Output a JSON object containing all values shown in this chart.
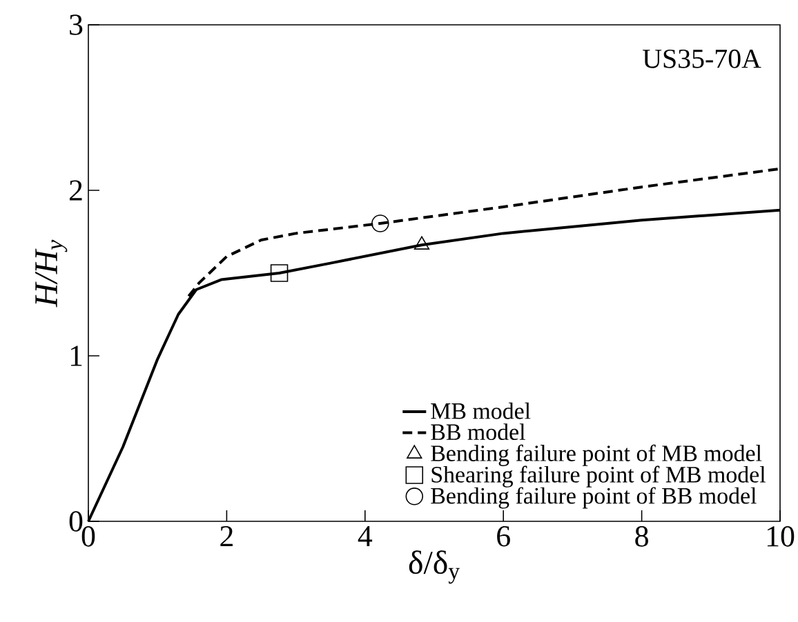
{
  "chart_data": {
    "type": "line",
    "xlabel": "δ/δ$_{y}$",
    "ylabel": "H/H$_{y}$",
    "annotations": [
      "US35-70A"
    ],
    "xlim": [
      0,
      10
    ],
    "ylim": [
      0,
      3
    ],
    "xticks": [
      0,
      2,
      4,
      6,
      8,
      10
    ],
    "yticks": [
      0,
      1,
      2,
      3
    ],
    "grid": false,
    "legend": "bottom right",
    "series": [
      {
        "name": "MB model",
        "type": "line",
        "color": "#000000",
        "line_style": "solid",
        "marker": "none",
        "x": [
          0,
          0.5,
          1.0,
          1.3,
          1.56,
          1.92,
          2.76,
          3.5,
          4.82,
          6,
          8,
          10
        ],
        "values": [
          0,
          0.45,
          0.98,
          1.25,
          1.4,
          1.46,
          1.5,
          1.56,
          1.67,
          1.74,
          1.82,
          1.88
        ]
      },
      {
        "name": "BB model",
        "type": "line",
        "color": "#000000",
        "line_style": "dashed",
        "marker": "none",
        "x": [
          1.45,
          1.6,
          2.0,
          2.5,
          3.0,
          4.22,
          6,
          8,
          10
        ],
        "values": [
          1.36,
          1.44,
          1.6,
          1.7,
          1.74,
          1.8,
          1.9,
          2.02,
          2.13
        ]
      },
      {
        "name": "Bending failure point of MB model",
        "type": "scatter",
        "color": "#000000",
        "marker": "triangle",
        "x": [
          4.82
        ],
        "values": [
          1.67
        ]
      },
      {
        "name": "Shearing failure point of MB model",
        "type": "scatter",
        "color": "#000000",
        "marker": "square",
        "x": [
          2.76
        ],
        "values": [
          1.5
        ]
      },
      {
        "name": "Bending failure point of BB model",
        "type": "scatter",
        "color": "#000000",
        "marker": "circle",
        "x": [
          4.22
        ],
        "values": [
          1.8
        ]
      }
    ]
  }
}
